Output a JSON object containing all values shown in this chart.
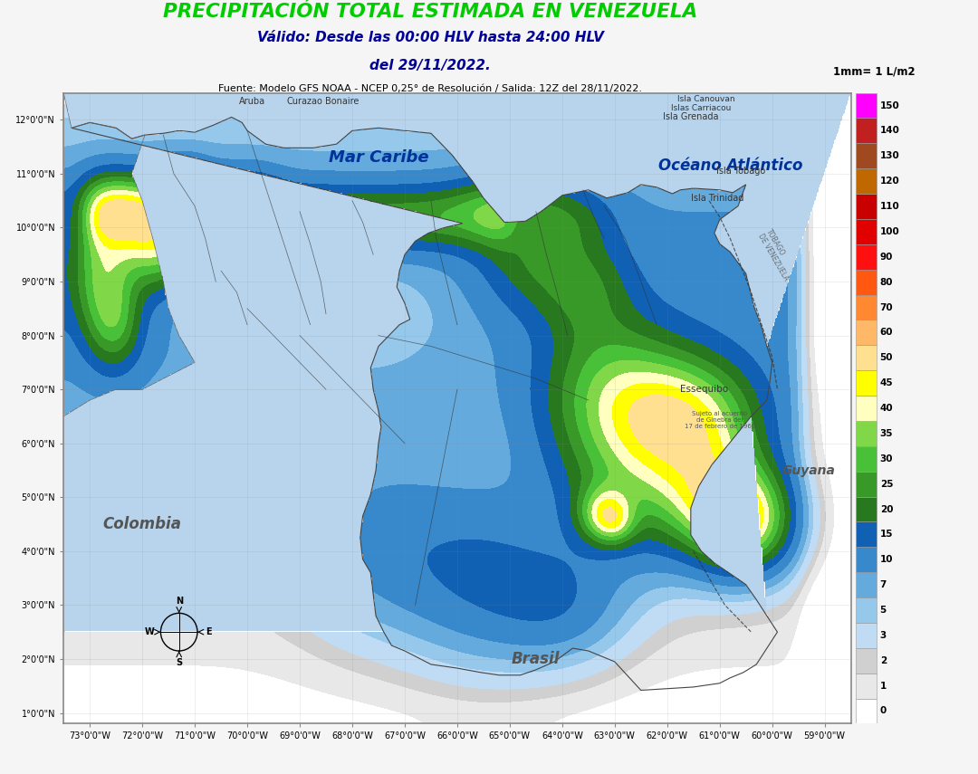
{
  "title_line1": "PRECIPITACIÓN TOTAL ESTIMADA EN VENEZUELA",
  "title_line2": "Válido: Desde las 00:00 HLV hasta 24:00 HLV",
  "title_line3": "del 29/11/2022.",
  "subtitle": "Fuente: Modelo GFS NOAA - NCEP 0,25° de Resolución / Salida: 12Z del 28/11/2022.",
  "colorbar_title": "1mm= 1 L/m2",
  "cbar_levels": [
    0,
    1,
    2,
    3,
    5,
    7,
    10,
    15,
    20,
    25,
    30,
    35,
    40,
    45,
    50,
    60,
    70,
    80,
    90,
    100,
    110,
    120,
    130,
    140,
    150
  ],
  "cbar_colors": [
    "#FFFFFF",
    "#E8E8E8",
    "#D0D0D0",
    "#C0DCF0",
    "#96C8EC",
    "#64AADC",
    "#3888CC",
    "#1060B4",
    "#286820",
    "#389828",
    "#48C038",
    "#80D848",
    "#FFFF00",
    "#FFFFF0",
    "#FFE0A0",
    "#FFB868",
    "#FF8830",
    "#FF5810",
    "#FF1010",
    "#E00000",
    "#C80000",
    "#C06800",
    "#A04820",
    "#C02020",
    "#FF00FF"
  ],
  "xlim": [
    -73.5,
    -58.5
  ],
  "ylim": [
    0.8,
    12.5
  ],
  "xticks": [
    -73,
    -72,
    -71,
    -70,
    -69,
    -68,
    -67,
    -66,
    -65,
    -64,
    -63,
    -62,
    -61,
    -60,
    -59
  ],
  "yticks": [
    1,
    2,
    3,
    4,
    5,
    6,
    7,
    8,
    9,
    10,
    11,
    12
  ],
  "ocean_color": "#B8D4EC",
  "outside_color": "#FFFFFF",
  "background_color": "#F5F5F5"
}
